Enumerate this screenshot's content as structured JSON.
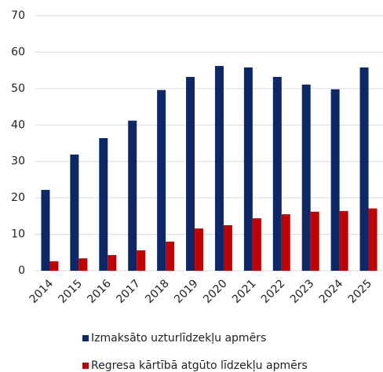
{
  "chart_data": {
    "type": "bar",
    "categories": [
      "2014",
      "2015",
      "2016",
      "2017",
      "2018",
      "2019",
      "2020",
      "2021",
      "2022",
      "2023",
      "2024",
      "2025"
    ],
    "series": [
      {
        "name": "Izmaksāto uzturlīdzekļu apmērs",
        "color": "#0e2766",
        "values": [
          22.2,
          31.9,
          36.4,
          41.2,
          49.6,
          53.2,
          56.2,
          55.8,
          53.2,
          51.1,
          49.8,
          55.8
        ]
      },
      {
        "name": "Regresa kārtībā atgūto līdzekļu apmērs",
        "color": "#c00000",
        "values": [
          2.6,
          3.4,
          4.3,
          5.6,
          8.0,
          11.6,
          12.5,
          14.4,
          15.5,
          16.2,
          16.4,
          17.1
        ]
      }
    ],
    "ylim": [
      0,
      70
    ],
    "yticks": [
      0,
      10,
      20,
      30,
      40,
      50,
      60,
      70
    ],
    "grid": true,
    "legend": "bottom"
  }
}
